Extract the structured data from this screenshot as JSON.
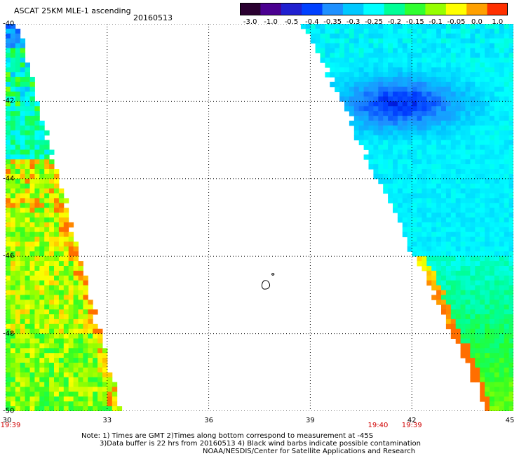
{
  "header": {
    "title": "ASCAT 25KM MLE-1 ascending",
    "date": "20160513"
  },
  "colorbar": {
    "ticks": [
      "-3.0",
      "-1.0",
      "-0.5",
      "-0.4",
      "-0.35",
      "-0.3",
      "-0.25",
      "-0.2",
      "-0.15",
      "-0.1",
      "-0.05",
      "0.0",
      "1.0"
    ],
    "colors": [
      "#2a0030",
      "#4a0090",
      "#2020d0",
      "#0040ff",
      "#1e90ff",
      "#00c8ff",
      "#00ffff",
      "#00ff96",
      "#30ff30",
      "#96ff00",
      "#ffff00",
      "#ffa000",
      "#ff3000"
    ]
  },
  "axes": {
    "x_ticks": [
      "30",
      "33",
      "36",
      "39",
      "42",
      "45"
    ],
    "y_ticks": [
      "-40",
      "-42",
      "-44",
      "-46",
      "-48",
      "-50"
    ],
    "xlim": [
      30,
      45
    ],
    "ylim": [
      -50,
      -40
    ],
    "grid": true
  },
  "swath_times": [
    {
      "label": "19:39",
      "lon": 30
    },
    {
      "label": "19:40",
      "lon": 41
    },
    {
      "label": "19:39",
      "lon": 42
    }
  ],
  "notes": {
    "line1": "Note: 1) Times are GMT 2)Times along bottom correspond to measurement at -45S",
    "line2": "3)Data buffer is 22 hrs from 20160513 4) Black wind barbs indicate possible contamination",
    "line3": "NOAA/NESDIS/Center for Satellite Applications and Research"
  }
}
